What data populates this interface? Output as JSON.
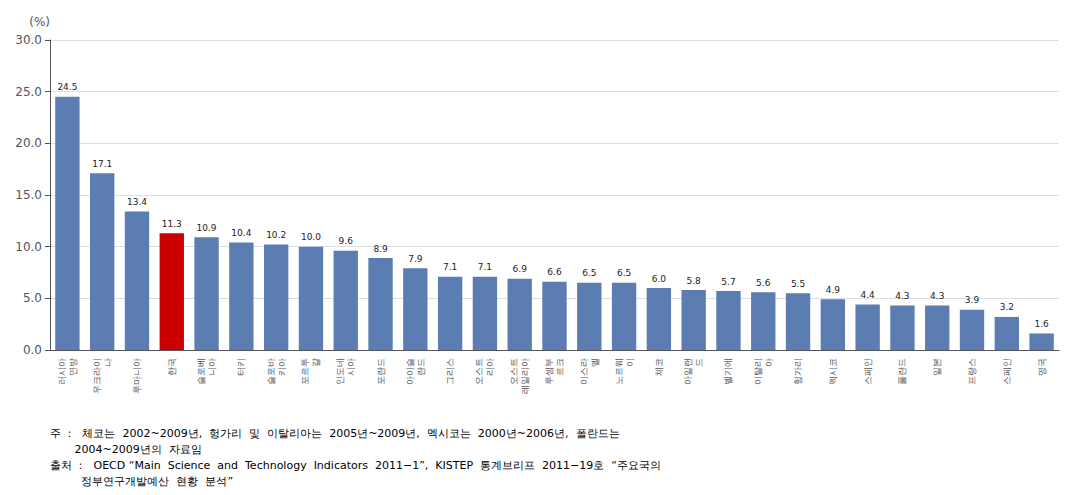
{
  "chart_data": {
    "type": "bar",
    "ylabel": "(%)",
    "categories": [
      "러시아\n연방",
      "우크라이\n나",
      "루마니아",
      "한국",
      "슬로베\n니아",
      "터키",
      "슬로바\n키아",
      "포르투\n갈",
      "인도네\n시아",
      "포란드",
      "아이슬\n란드",
      "그리스",
      "오스트\n리아",
      "오스트\n레일리아",
      "루셈부\n르크",
      "이스라\n엘",
      "노르웨\n이",
      "체코",
      "아일랜\n드",
      "벨기에",
      "이탈리\n아",
      "헝가리",
      "멕시코",
      "스페인",
      "폴란드",
      "일본",
      "프랑스",
      "스페인",
      "영국"
    ],
    "values": [
      24.5,
      17.1,
      13.4,
      11.3,
      10.9,
      10.4,
      10.2,
      10.0,
      9.6,
      8.9,
      7.9,
      7.1,
      7.1,
      6.9,
      6.6,
      6.5,
      6.5,
      6.0,
      5.8,
      5.7,
      5.6,
      5.5,
      4.9,
      4.4,
      4.3,
      4.3,
      3.9,
      3.2,
      1.6
    ],
    "value_labels": [
      "24.5",
      "17.1",
      "13.4",
      "11.3",
      "10.9",
      "10.4",
      "10.2",
      "10.0",
      "9.6",
      "8.9",
      "7.9",
      "7.1",
      "7.1",
      "6.9",
      "6.6",
      "6.5",
      "6.5",
      "6.0",
      "5.8",
      "5.7",
      "5.6",
      "5.5",
      "4.9",
      "4.4",
      "4.3",
      "4.3",
      "3.9",
      "3.2",
      "1.6"
    ],
    "colors": [
      "#5B7DB1",
      "#5B7DB1",
      "#5B7DB1",
      "#CC0000",
      "#5B7DB1",
      "#5B7DB1",
      "#5B7DB1",
      "#5B7DB1",
      "#5B7DB1",
      "#5B7DB1",
      "#5B7DB1",
      "#5B7DB1",
      "#5B7DB1",
      "#5B7DB1",
      "#5B7DB1",
      "#5B7DB1",
      "#5B7DB1",
      "#5B7DB1",
      "#5B7DB1",
      "#5B7DB1",
      "#5B7DB1",
      "#5B7DB1",
      "#5B7DB1",
      "#5B7DB1",
      "#5B7DB1",
      "#5B7DB1",
      "#5B7DB1",
      "#5B7DB1",
      "#5B7DB1"
    ],
    "data_labels": true,
    "ylim": [
      0,
      30
    ],
    "yticks": [
      {
        "value": 0,
        "label": "0.0"
      },
      {
        "value": 5,
        "label": "5.0"
      },
      {
        "value": 10,
        "label": "10.0"
      },
      {
        "value": 15,
        "label": "15.0"
      },
      {
        "value": 20,
        "label": "20.0"
      },
      {
        "value": 25,
        "label": "25.0"
      },
      {
        "value": 30,
        "label": "30.0"
      }
    ],
    "grid": true,
    "annotations": [
      "주 ：  체코는  2002~2009년,  헝가리  및  이탈리아는  2005년~2009년,  멕시코는  2000년~2006년,  폴란드는",
      "       2004~2009년의  자료임",
      "출처 ：  OECD “Main  Science  and  Technology  Indicators  2011−1”,  KISTEP  통계브리프  2011−19호  “주요국의",
      "         정부연구개발예산  현황  분석”"
    ]
  }
}
